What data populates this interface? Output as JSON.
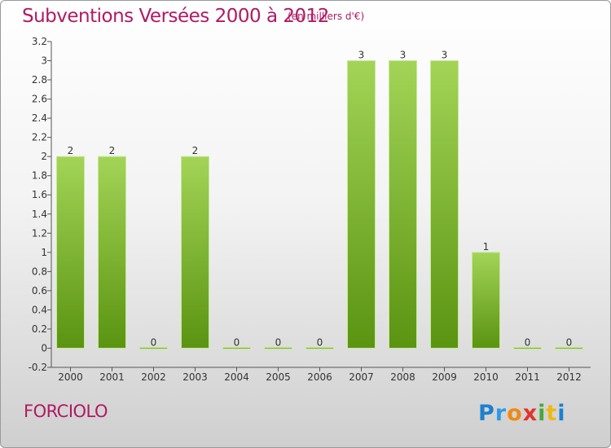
{
  "header": {
    "title": "Subventions Versées 2000 à 2012",
    "unit": "(en milliers d'€)"
  },
  "footer": {
    "commune": "FORCIOLO",
    "logo_text": "Proxiti"
  },
  "colors": {
    "title": "#b01a63",
    "bar_top": "#a3d457",
    "bar_bottom": "#5a9411"
  },
  "chart_data": {
    "type": "bar",
    "title": "Subventions Versées 2000 à 2012",
    "subtitle": "(en milliers d'€)",
    "categories": [
      "2000",
      "2001",
      "2002",
      "2003",
      "2004",
      "2005",
      "2006",
      "2007",
      "2008",
      "2009",
      "2010",
      "2011",
      "2012"
    ],
    "values": [
      2,
      2,
      0,
      2,
      0,
      0,
      0,
      3,
      3,
      3,
      1,
      0,
      0
    ],
    "data_labels": [
      "2",
      "2",
      "0",
      "2",
      "0",
      "0",
      "0",
      "3",
      "3",
      "3",
      "1",
      "0",
      "0"
    ],
    "ylim": [
      -0.2,
      3.2
    ],
    "yticks": [
      -0.2,
      0,
      0.2,
      0.4,
      0.6,
      0.8,
      1,
      1.2,
      1.4,
      1.6,
      1.8,
      2,
      2.2,
      2.4,
      2.6,
      2.8,
      3,
      3.2
    ],
    "ytick_labels": [
      "-0.2",
      "0",
      "0.2",
      "0.4",
      "0.6",
      "0.8",
      "1",
      "1.2",
      "1.4",
      "1.6",
      "1.8",
      "2",
      "2.2",
      "2.4",
      "2.6",
      "2.8",
      "3",
      "3.2"
    ],
    "grid": false,
    "legend": "none"
  }
}
